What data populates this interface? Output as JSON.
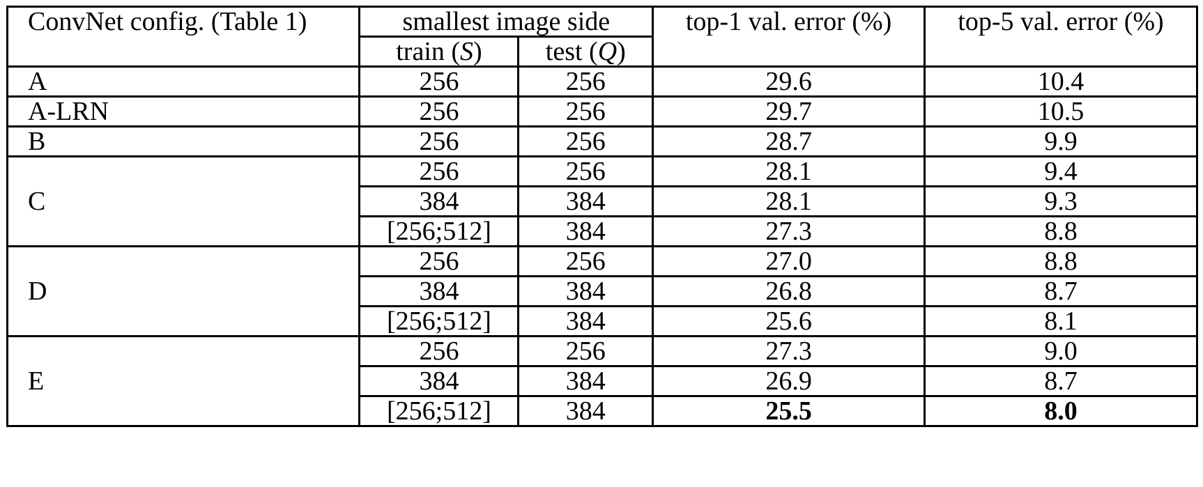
{
  "table": {
    "headers": {
      "config": "ConvNet config. (Table 1)",
      "smallest_side": "smallest image side",
      "train_prefix": "train (",
      "train_var": "S",
      "train_suffix": ")",
      "test_prefix": "test (",
      "test_var": "Q",
      "test_suffix": ")",
      "top1": "top-1 val. error (%)",
      "top5": "top-5 val. error (%)"
    },
    "groups": [
      {
        "config": "A",
        "rows": [
          {
            "train": "256",
            "test": "256",
            "top1": "29.6",
            "top5": "10.4"
          }
        ]
      },
      {
        "config": "A-LRN",
        "rows": [
          {
            "train": "256",
            "test": "256",
            "top1": "29.7",
            "top5": "10.5"
          }
        ]
      },
      {
        "config": "B",
        "rows": [
          {
            "train": "256",
            "test": "256",
            "top1": "28.7",
            "top5": "9.9"
          }
        ]
      },
      {
        "config": "C",
        "rows": [
          {
            "train": "256",
            "test": "256",
            "top1": "28.1",
            "top5": "9.4"
          },
          {
            "train": "384",
            "test": "384",
            "top1": "28.1",
            "top5": "9.3"
          },
          {
            "train": "[256;512]",
            "test": "384",
            "top1": "27.3",
            "top5": "8.8"
          }
        ]
      },
      {
        "config": "D",
        "rows": [
          {
            "train": "256",
            "test": "256",
            "top1": "27.0",
            "top5": "8.8"
          },
          {
            "train": "384",
            "test": "384",
            "top1": "26.8",
            "top5": "8.7"
          },
          {
            "train": "[256;512]",
            "test": "384",
            "top1": "25.6",
            "top5": "8.1"
          }
        ]
      },
      {
        "config": "E",
        "rows": [
          {
            "train": "256",
            "test": "256",
            "top1": "27.3",
            "top5": "9.0"
          },
          {
            "train": "384",
            "test": "384",
            "top1": "26.9",
            "top5": "8.7"
          },
          {
            "train": "[256;512]",
            "test": "384",
            "top1": "25.5",
            "top5": "8.0",
            "bold": true
          }
        ]
      }
    ]
  }
}
